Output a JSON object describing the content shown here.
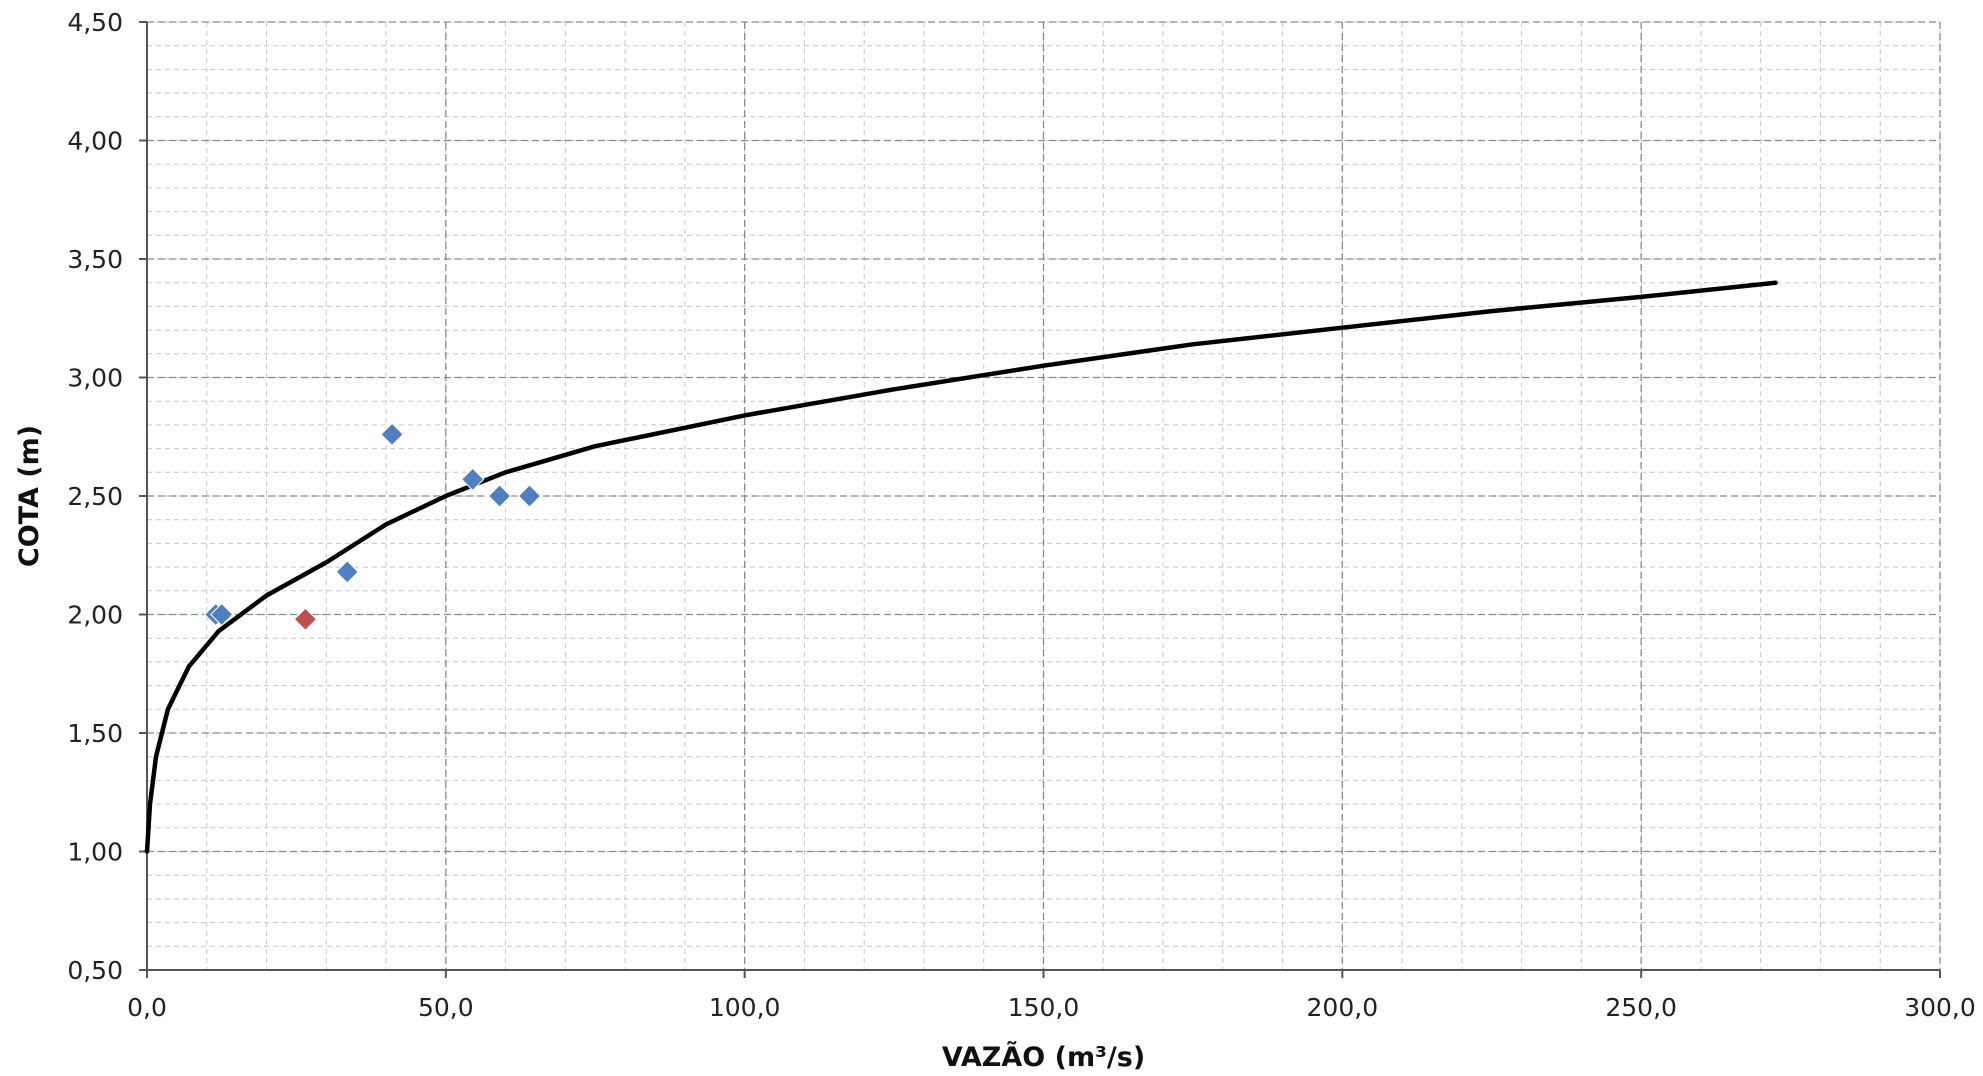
{
  "chart_data": {
    "type": "scatter",
    "xlabel": "VAZÃO (m³/s)",
    "ylabel": "COTA (m)",
    "xlim": [
      0,
      300
    ],
    "ylim": [
      0.5,
      4.5
    ],
    "x_ticks": [
      0,
      50,
      100,
      150,
      200,
      250,
      300
    ],
    "x_tick_labels": [
      "0,0",
      "50,0",
      "100,0",
      "150,0",
      "200,0",
      "250,0",
      "300,0"
    ],
    "y_ticks": [
      0.5,
      1.0,
      1.5,
      2.0,
      2.5,
      3.0,
      3.5,
      4.0,
      4.5
    ],
    "y_tick_labels": [
      "0,50",
      "1,00",
      "1,50",
      "2,00",
      "2,50",
      "3,00",
      "3,50",
      "4,00",
      "4,50"
    ],
    "grid": true,
    "legend": "none",
    "series": [
      {
        "kind": "markers",
        "marker": "diamond",
        "color": "#4F7FC1",
        "points": [
          {
            "x": 11.5,
            "y": 2.0
          },
          {
            "x": 12.5,
            "y": 2.0
          },
          {
            "x": 33.5,
            "y": 2.18
          },
          {
            "x": 41.0,
            "y": 2.76
          },
          {
            "x": 54.5,
            "y": 2.57
          },
          {
            "x": 59.0,
            "y": 2.5
          },
          {
            "x": 64.0,
            "y": 2.5
          }
        ]
      },
      {
        "kind": "markers",
        "marker": "diamond",
        "color": "#C0504D",
        "points": [
          {
            "x": 26.5,
            "y": 1.98
          }
        ]
      },
      {
        "kind": "curve",
        "color": "#000000",
        "points": [
          {
            "x": 0.0,
            "y": 1.0
          },
          {
            "x": 0.5,
            "y": 1.2
          },
          {
            "x": 1.5,
            "y": 1.4
          },
          {
            "x": 3.5,
            "y": 1.6
          },
          {
            "x": 7.0,
            "y": 1.78
          },
          {
            "x": 12.0,
            "y": 1.93
          },
          {
            "x": 20.0,
            "y": 2.08
          },
          {
            "x": 30.0,
            "y": 2.22
          },
          {
            "x": 40.0,
            "y": 2.38
          },
          {
            "x": 50.0,
            "y": 2.5
          },
          {
            "x": 60.0,
            "y": 2.6
          },
          {
            "x": 75.0,
            "y": 2.71
          },
          {
            "x": 100.0,
            "y": 2.84
          },
          {
            "x": 125.0,
            "y": 2.95
          },
          {
            "x": 150.0,
            "y": 3.05
          },
          {
            "x": 175.0,
            "y": 3.14
          },
          {
            "x": 200.0,
            "y": 3.21
          },
          {
            "x": 225.0,
            "y": 3.28
          },
          {
            "x": 250.0,
            "y": 3.34
          },
          {
            "x": 272.5,
            "y": 3.4
          }
        ]
      }
    ]
  }
}
